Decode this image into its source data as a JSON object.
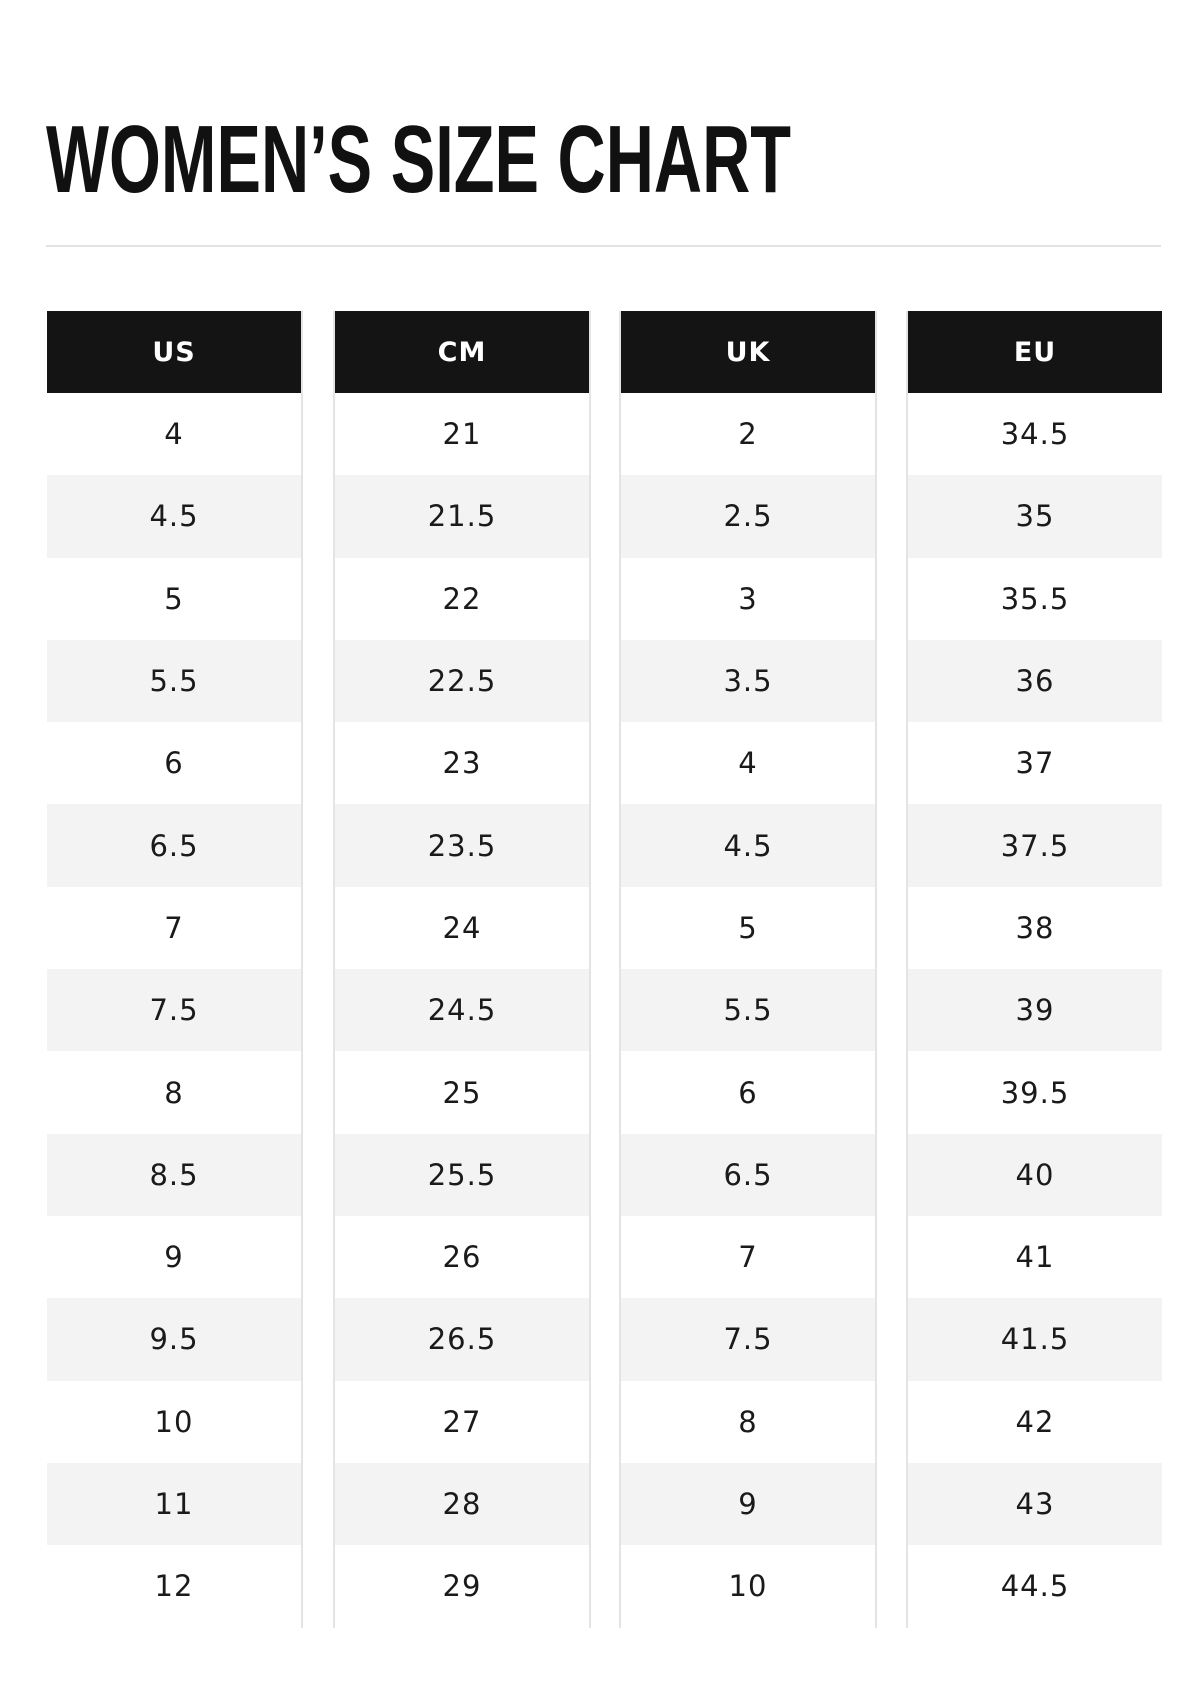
{
  "header": {
    "title": "WOMEN’S SIZE CHART"
  },
  "table": {
    "headers": [
      "US",
      "CM",
      "UK",
      "EU"
    ],
    "rows": [
      [
        "4",
        "21",
        "2",
        "34.5"
      ],
      [
        "4.5",
        "21.5",
        "2.5",
        "35"
      ],
      [
        "5",
        "22",
        "3",
        "35.5"
      ],
      [
        "5.5",
        "22.5",
        "3.5",
        "36"
      ],
      [
        "6",
        "23",
        "4",
        "37"
      ],
      [
        "6.5",
        "23.5",
        "4.5",
        "37.5"
      ],
      [
        "7",
        "24",
        "5",
        "38"
      ],
      [
        "7.5",
        "24.5",
        "5.5",
        "39"
      ],
      [
        "8",
        "25",
        "6",
        "39.5"
      ],
      [
        "8.5",
        "25.5",
        "6.5",
        "40"
      ],
      [
        "9",
        "26",
        "7",
        "41"
      ],
      [
        "9.5",
        "26.5",
        "7.5",
        "41.5"
      ],
      [
        "10",
        "27",
        "8",
        "42"
      ],
      [
        "11",
        "28",
        "9",
        "43"
      ],
      [
        "12",
        "29",
        "10",
        "44.5"
      ]
    ]
  }
}
